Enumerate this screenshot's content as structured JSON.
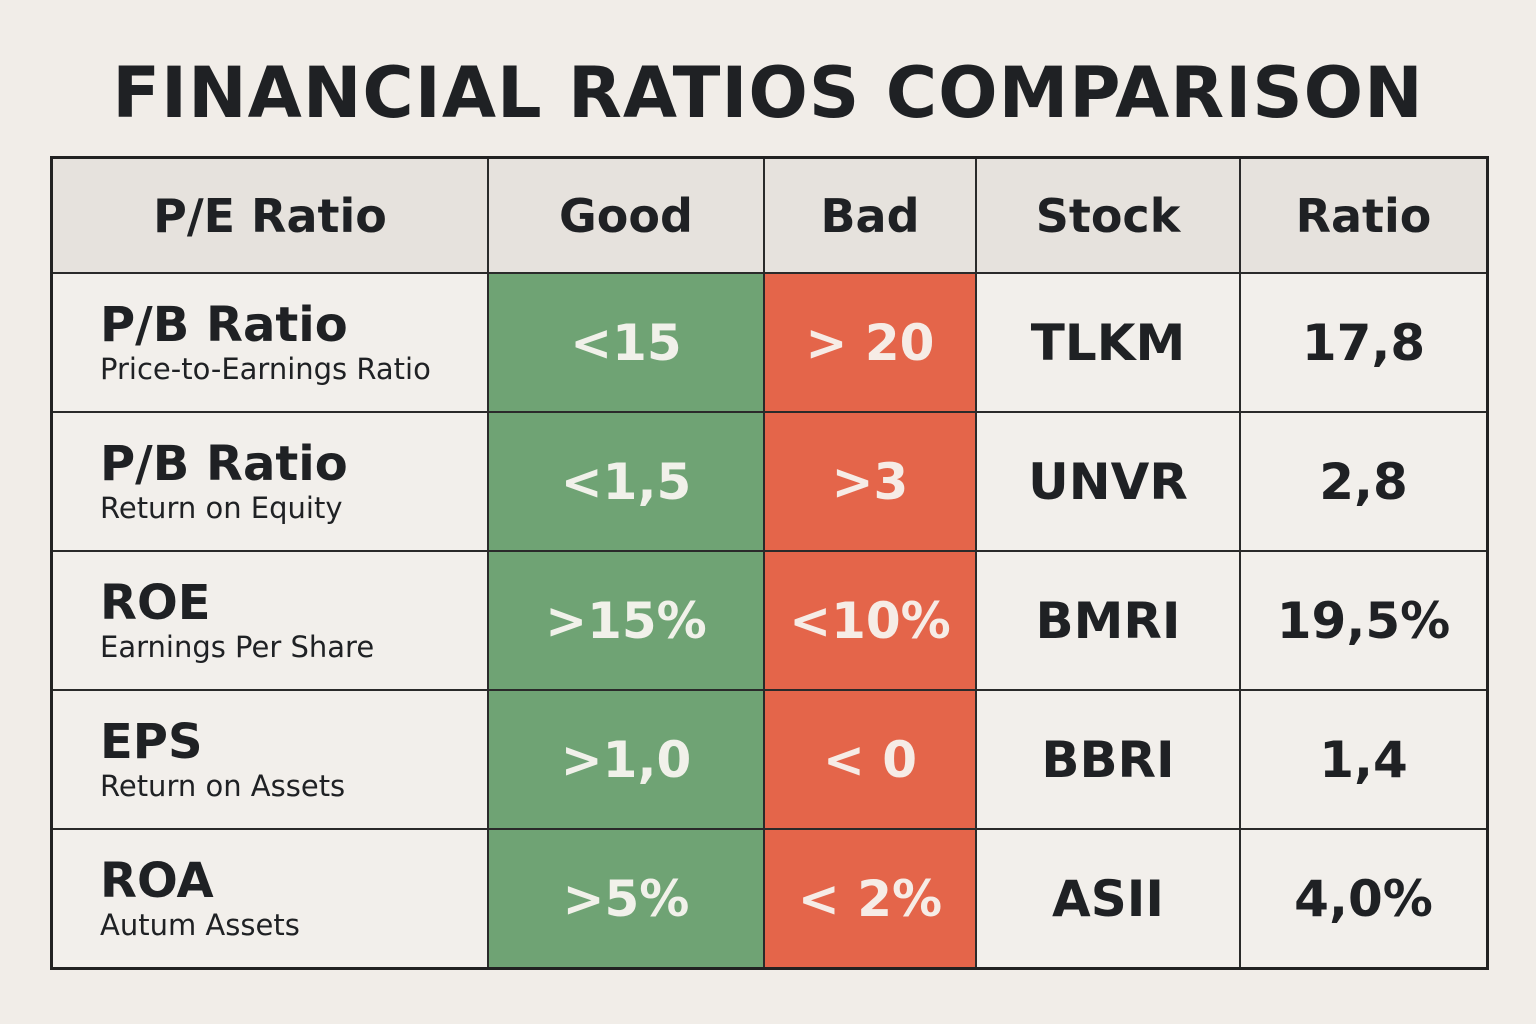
{
  "title": "FINANCIAL RATIOS COMPARISON",
  "headers": [
    "P/E Ratio",
    "Good",
    "Bad",
    "Stock",
    "Ratio"
  ],
  "rows": [
    {
      "name": "P/B Ratio",
      "desc": "Price-to-Earnings Ratio",
      "good": "<15",
      "bad": "> 20",
      "stock": "TLKM",
      "ratio": "17,8"
    },
    {
      "name": "P/B Ratio",
      "desc": "Return on Equity",
      "good": "<1,5",
      "bad": ">3",
      "stock": "UNVR",
      "ratio": "2,8"
    },
    {
      "name": "ROE",
      "desc": "Earnings Per Share",
      "good": ">15%",
      "bad": "<10%",
      "stock": "BMRI",
      "ratio": "19,5%"
    },
    {
      "name": "EPS",
      "desc": "Return on Assets",
      "good": ">1,0",
      "bad": "< 0",
      "stock": "BBRI",
      "ratio": "1,4"
    },
    {
      "name": "ROA",
      "desc": "Autum Assets",
      "good": ">5%",
      "bad": "< 2%",
      "stock": "ASII",
      "ratio": "4,0%"
    }
  ],
  "colors": {
    "good": "#6fa374",
    "bad": "#e4654a",
    "background": "#f1ede8"
  }
}
